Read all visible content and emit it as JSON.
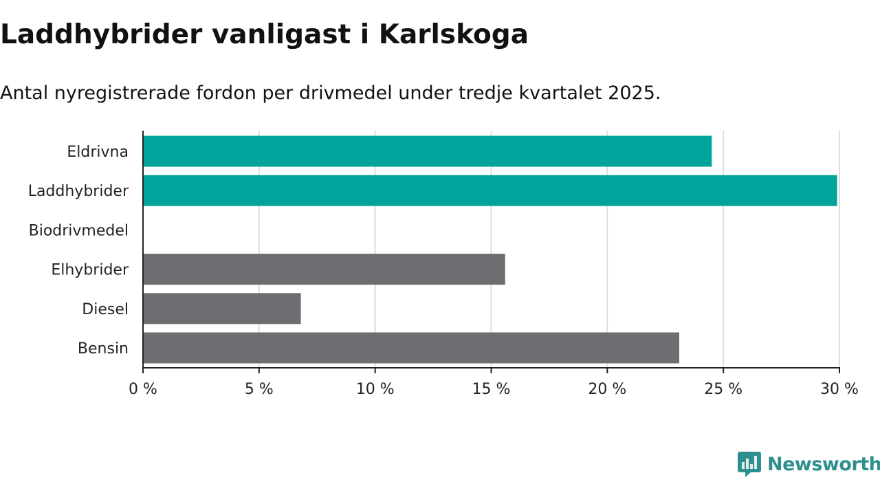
{
  "title": "Laddhybrider vanligast i Karlskoga",
  "subtitle": "Antal nyregistrerade fordon per drivmedel under tredje kvartalet 2025.",
  "brand": "Newsworthy",
  "colors": {
    "highlight": "#00a49a",
    "default": "#6e6d72",
    "grid": "#dddddd",
    "axis": "#222222",
    "brand": "#2f8f8f"
  },
  "chart_data": {
    "type": "bar",
    "orientation": "horizontal",
    "categories": [
      "Eldrivna",
      "Laddhybrider",
      "Biodrivmedel",
      "Elhybrider",
      "Diesel",
      "Bensin"
    ],
    "values": [
      24.5,
      29.9,
      0,
      15.6,
      6.8,
      23.1
    ],
    "highlighted": [
      true,
      true,
      false,
      false,
      false,
      false
    ],
    "xlim": [
      0,
      30
    ],
    "xticks": [
      0,
      5,
      10,
      15,
      20,
      25,
      30
    ],
    "xtick_labels": [
      "0 %",
      "5 %",
      "10 %",
      "15 %",
      "20 %",
      "25 %",
      "30 %"
    ],
    "grid": true
  }
}
